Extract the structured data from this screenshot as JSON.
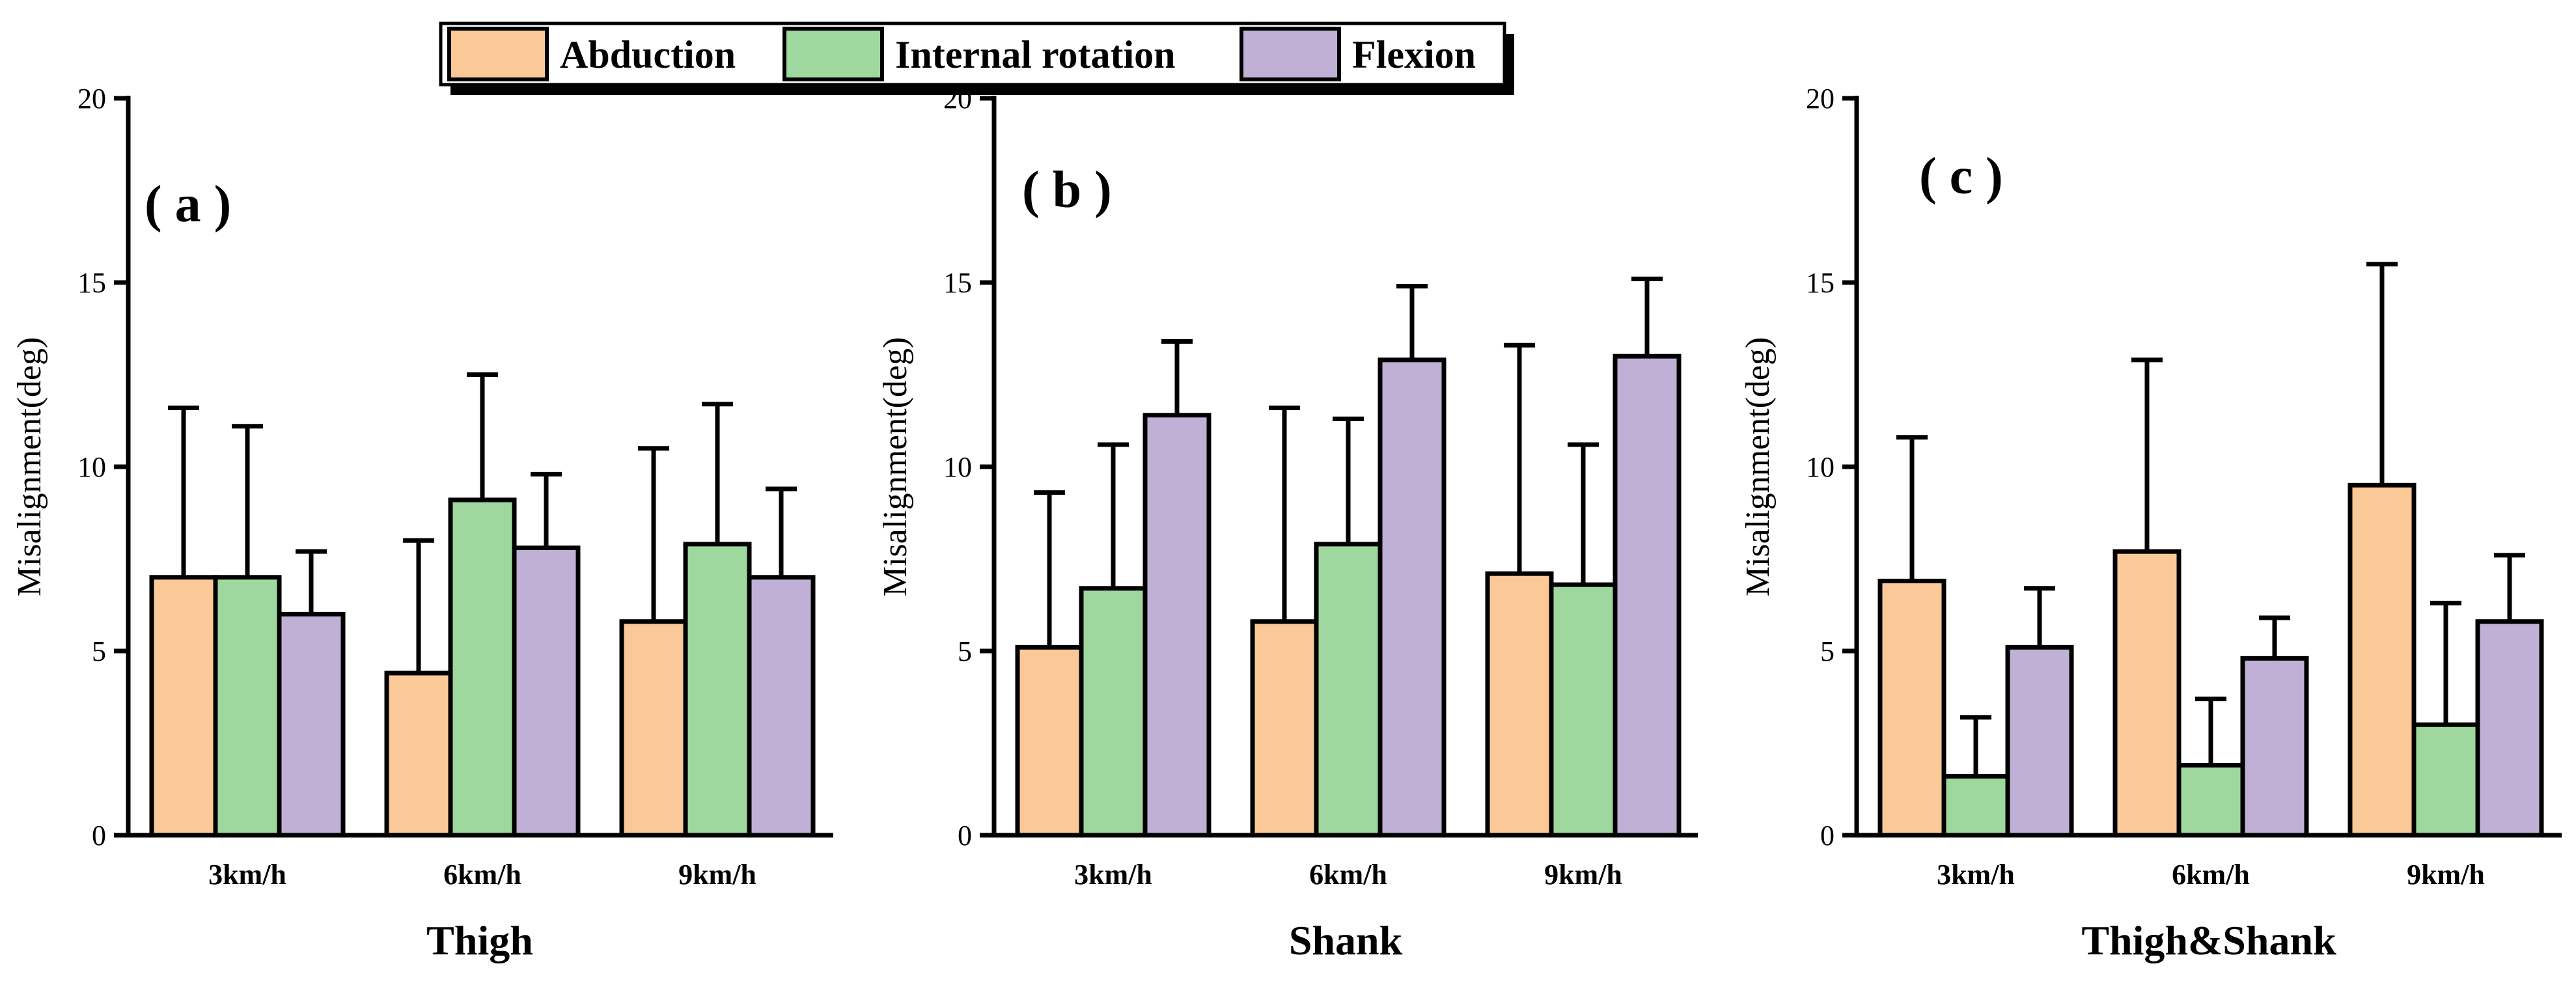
{
  "colors": {
    "Abduction": "#fbc998",
    "Internal rotation": "#9ed89f",
    "Flexion": "#c0b0d6"
  },
  "legend": [
    "Abduction",
    "Internal rotation",
    "Flexion"
  ],
  "chart_data": [
    {
      "type": "bar",
      "panel_label": "( a )",
      "title": "Thigh",
      "ylabel": "Misalignment(deg)",
      "ylim": [
        0,
        20
      ],
      "yticks": [
        0,
        5,
        10,
        15,
        20
      ],
      "categories": [
        "3km/h",
        "6km/h",
        "9km/h"
      ],
      "series": [
        {
          "name": "Abduction",
          "values": [
            7.0,
            4.4,
            5.8
          ],
          "errors": [
            4.6,
            3.6,
            4.7
          ]
        },
        {
          "name": "Internal rotation",
          "values": [
            7.0,
            9.1,
            7.9
          ],
          "errors": [
            4.1,
            3.4,
            3.8
          ]
        },
        {
          "name": "Flexion",
          "values": [
            6.0,
            7.8,
            7.0
          ],
          "errors": [
            1.7,
            2.0,
            2.4
          ]
        }
      ]
    },
    {
      "type": "bar",
      "panel_label": "( b )",
      "title": "Shank",
      "ylabel": "Misalignment(deg)",
      "ylim": [
        0,
        20
      ],
      "yticks": [
        0,
        5,
        10,
        15,
        20
      ],
      "categories": [
        "3km/h",
        "6km/h",
        "9km/h"
      ],
      "series": [
        {
          "name": "Abduction",
          "values": [
            5.1,
            5.8,
            7.1
          ],
          "errors": [
            4.2,
            5.8,
            6.2
          ]
        },
        {
          "name": "Internal rotation",
          "values": [
            6.7,
            7.9,
            6.8
          ],
          "errors": [
            3.9,
            3.4,
            3.8
          ]
        },
        {
          "name": "Flexion",
          "values": [
            11.4,
            12.9,
            13.0
          ],
          "errors": [
            2.0,
            2.0,
            2.1
          ]
        }
      ]
    },
    {
      "type": "bar",
      "panel_label": "( c )",
      "title": "Thigh&Shank",
      "ylabel": "Misalignment(deg)",
      "ylim": [
        0,
        20
      ],
      "yticks": [
        0,
        5,
        10,
        15,
        20
      ],
      "categories": [
        "3km/h",
        "6km/h",
        "9km/h"
      ],
      "series": [
        {
          "name": "Abduction",
          "values": [
            6.9,
            7.7,
            9.5
          ],
          "errors": [
            3.9,
            5.2,
            6.0
          ]
        },
        {
          "name": "Internal rotation",
          "values": [
            1.6,
            1.9,
            3.0
          ],
          "errors": [
            1.6,
            1.8,
            3.3
          ]
        },
        {
          "name": "Flexion",
          "values": [
            5.1,
            4.8,
            5.8
          ],
          "errors": [
            1.6,
            1.1,
            1.8
          ]
        }
      ]
    }
  ]
}
